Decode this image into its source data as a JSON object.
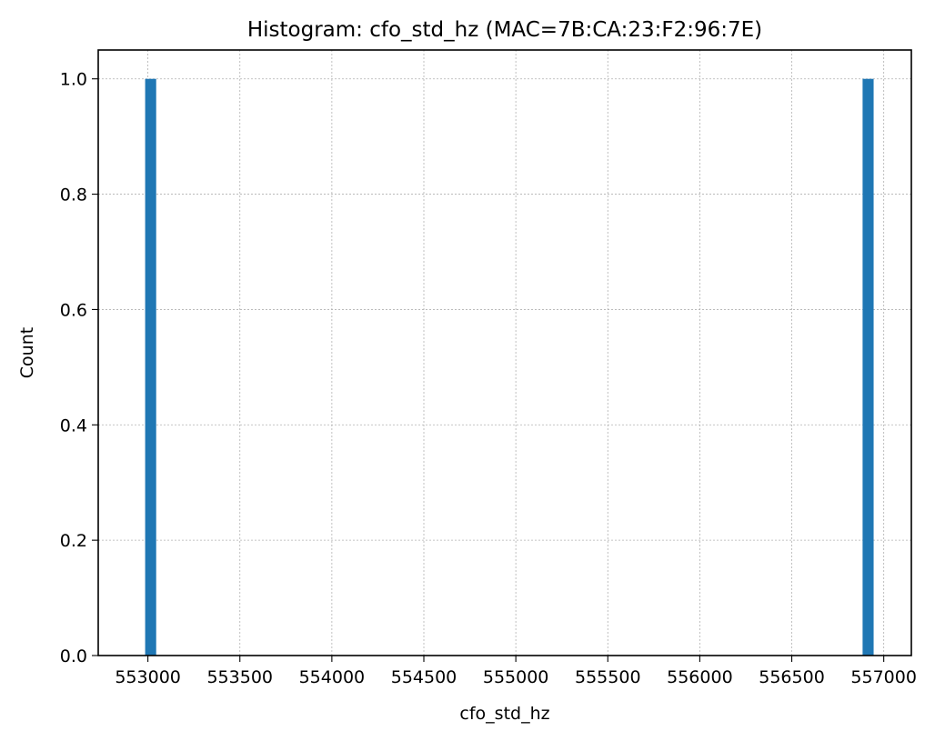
{
  "chart_data": {
    "type": "bar",
    "title": "Histogram: cfo_std_hz (MAC=7B:CA:23:F2:96:7E)",
    "xlabel": "cfo_std_hz",
    "ylabel": "Count",
    "xlim": [
      552730,
      557150
    ],
    "ylim": [
      0,
      1.05
    ],
    "x_ticks": [
      553000,
      553500,
      554000,
      554500,
      555000,
      555500,
      556000,
      556500,
      557000
    ],
    "y_ticks": [
      0.0,
      0.2,
      0.4,
      0.6,
      0.8,
      1.0
    ],
    "y_tick_labels": [
      "0.0",
      "0.2",
      "0.4",
      "0.6",
      "0.8",
      "1.0"
    ],
    "grid": true,
    "bar_color": "#1f77b4",
    "bins": [
      {
        "x0": 552985,
        "x1": 553045,
        "count": 1
      },
      {
        "x0": 556885,
        "x1": 556945,
        "count": 1
      }
    ]
  }
}
